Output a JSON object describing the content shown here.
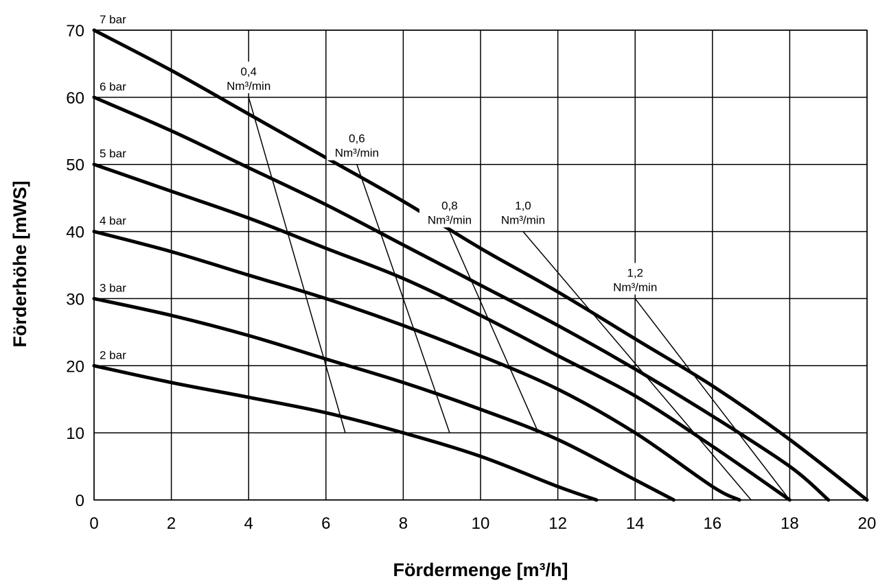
{
  "chart_data": {
    "type": "line",
    "title": "",
    "xlabel": "Fördermenge [m³/h]",
    "ylabel": "Förderhöhe [mWS]",
    "xlim": [
      0,
      20
    ],
    "ylim": [
      0,
      70
    ],
    "x_ticks": [
      "0",
      "2",
      "4",
      "6",
      "8",
      "10",
      "12",
      "14",
      "16",
      "18",
      "20"
    ],
    "y_ticks": [
      "0",
      "10",
      "20",
      "30",
      "40",
      "50",
      "60",
      "70"
    ],
    "grid": true,
    "series": [
      {
        "name": "7 bar",
        "points": [
          [
            0,
            70
          ],
          [
            2,
            64
          ],
          [
            4,
            57.5
          ],
          [
            6,
            51
          ],
          [
            8,
            44.5
          ],
          [
            10,
            37.5
          ],
          [
            12,
            31
          ],
          [
            14,
            24
          ],
          [
            16,
            17
          ],
          [
            18,
            9
          ],
          [
            20,
            0
          ]
        ]
      },
      {
        "name": "6 bar",
        "points": [
          [
            0,
            60
          ],
          [
            2,
            55
          ],
          [
            4,
            49.5
          ],
          [
            6,
            44
          ],
          [
            8,
            38
          ],
          [
            10,
            32
          ],
          [
            12,
            26
          ],
          [
            14,
            19.5
          ],
          [
            16,
            12.5
          ],
          [
            18,
            5
          ],
          [
            19,
            0
          ]
        ]
      },
      {
        "name": "5 bar",
        "points": [
          [
            0,
            50
          ],
          [
            2,
            46
          ],
          [
            4,
            42
          ],
          [
            6,
            37.5
          ],
          [
            8,
            33
          ],
          [
            10,
            27.5
          ],
          [
            12,
            21.5
          ],
          [
            14,
            15.5
          ],
          [
            16,
            8
          ],
          [
            18,
            0
          ]
        ]
      },
      {
        "name": "4 bar",
        "points": [
          [
            0,
            40
          ],
          [
            2,
            37
          ],
          [
            4,
            33.5
          ],
          [
            6,
            30
          ],
          [
            8,
            26
          ],
          [
            10,
            21.5
          ],
          [
            12,
            16.5
          ],
          [
            14,
            10
          ],
          [
            16,
            2
          ],
          [
            16.7,
            0
          ]
        ]
      },
      {
        "name": "3 bar",
        "points": [
          [
            0,
            30
          ],
          [
            2,
            27.5
          ],
          [
            4,
            24.5
          ],
          [
            6,
            21
          ],
          [
            8,
            17.5
          ],
          [
            10,
            13.5
          ],
          [
            12,
            9
          ],
          [
            14,
            3
          ],
          [
            15,
            0
          ]
        ]
      },
      {
        "name": "2 bar",
        "points": [
          [
            0,
            20
          ],
          [
            2,
            17.5
          ],
          [
            4,
            15.3
          ],
          [
            6,
            13
          ],
          [
            8,
            10
          ],
          [
            10,
            6.5
          ],
          [
            12,
            2
          ],
          [
            13,
            0
          ]
        ]
      }
    ],
    "air_consumption_lines": [
      {
        "label": "0,4",
        "unit": "Nm³/min",
        "points": [
          [
            4,
            60
          ],
          [
            6.5,
            10
          ]
        ]
      },
      {
        "label": "0,6",
        "unit": "Nm³/min",
        "points": [
          [
            6.8,
            50
          ],
          [
            9.2,
            10
          ]
        ]
      },
      {
        "label": "0,8",
        "unit": "Nm³/min",
        "points": [
          [
            9.2,
            40
          ],
          [
            11.5,
            10
          ]
        ]
      },
      {
        "label": "1,0",
        "unit": "Nm³/min",
        "points": [
          [
            11.1,
            40
          ],
          [
            17,
            0
          ]
        ]
      },
      {
        "label": "1,2",
        "unit": "Nm³/min",
        "points": [
          [
            14,
            30
          ],
          [
            18,
            0
          ]
        ]
      }
    ]
  }
}
